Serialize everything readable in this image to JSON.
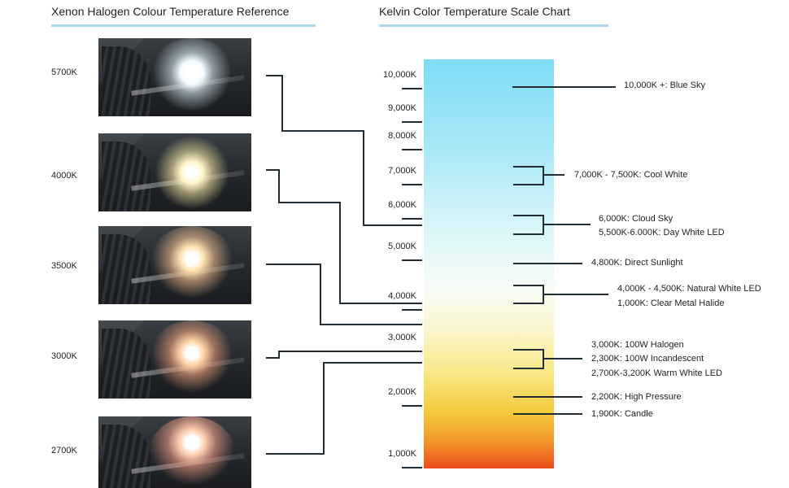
{
  "left_title": "Xenon Halogen Colour Temperature Reference",
  "right_title": "Kelvin Color Temperature Scale Chart",
  "colors": {
    "accent_underline": "#a9d8e8",
    "line": "#222d33",
    "scale_top": "#7ddcf6",
    "scale_bottom": "#ed4c1e"
  },
  "samples": [
    {
      "label": "5700K",
      "glow": "#f2fbff"
    },
    {
      "label": "4000K",
      "glow": "#fff6c8"
    },
    {
      "label": "3500K",
      "glow": "#ffe2b0"
    },
    {
      "label": "3000K",
      "glow": "#ffd4a6"
    },
    {
      "label": "2700K",
      "glow": "#ffcdb0"
    }
  ],
  "scale_ticks": [
    {
      "label": "10,000K"
    },
    {
      "label": "9,000K"
    },
    {
      "label": "8,000K"
    },
    {
      "label": "7,000K"
    },
    {
      "label": "6,000K"
    },
    {
      "label": "5,000K"
    },
    {
      "label": "4,000K"
    },
    {
      "label": "3,000K"
    },
    {
      "label": "2,000K"
    },
    {
      "label": "1,000K"
    }
  ],
  "annotations": {
    "blue_sky": "10,000K +: Blue Sky",
    "cool_white": "7,000K - 7,500K: Cool White",
    "cloud_sky": "6,000K: Cloud Sky",
    "day_white_led": "5,500K-6.000K: Day White LED",
    "direct_sunlight": "4,800K: Direct Sunlight",
    "natural_white_led": "4,000K - 4,500K: Natural White LED",
    "clear_metal_halide": "1,000K: Clear Metal Halide",
    "halogen_100w": "3,000K: 100W Halogen",
    "incandescent_100w": "2,300K: 100W Incandescent",
    "warm_white_led": "2,700K-3,200K Warm White LED",
    "high_pressure": "2,200K: High Pressure",
    "candle": "1,900K: Candle"
  }
}
